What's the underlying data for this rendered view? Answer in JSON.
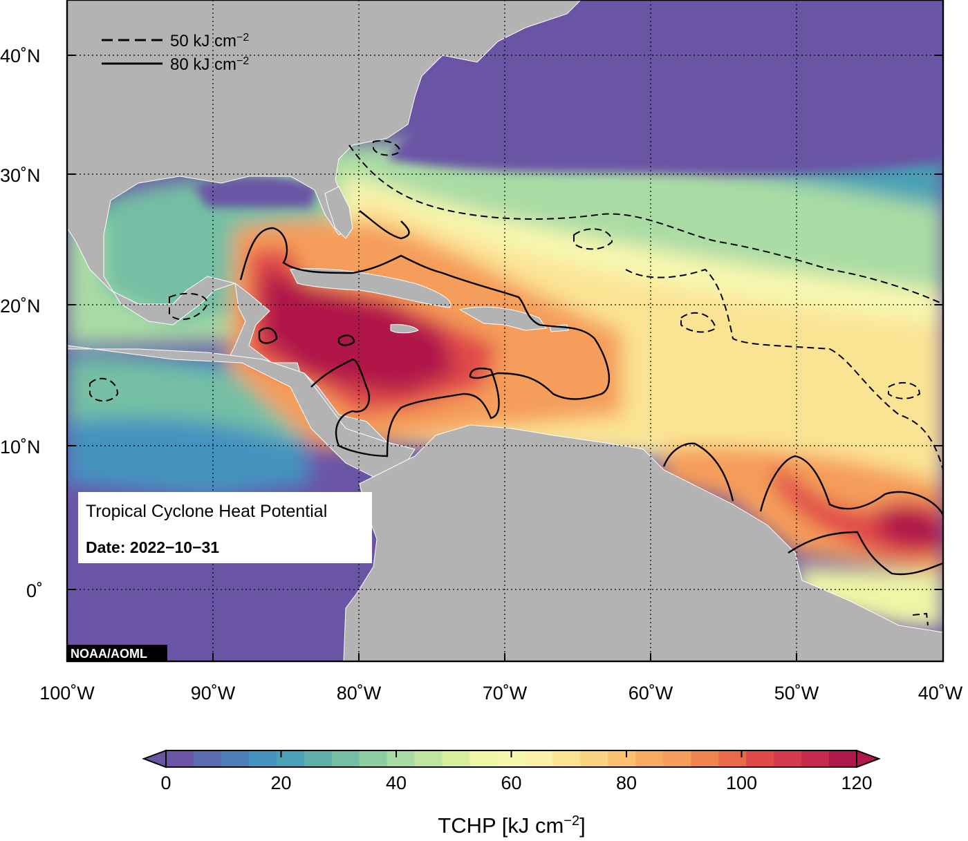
{
  "map": {
    "credit": "NOAA/AOML",
    "lat_labels": [
      "40˚N",
      "30˚N",
      "20˚N",
      "10˚N",
      "0˚"
    ],
    "lon_labels": [
      "100˚W",
      "90˚W",
      "80˚W",
      "70˚W",
      "60˚W",
      "50˚W",
      "40˚W"
    ],
    "lon_range": [
      -100,
      -40
    ],
    "lat_range": [
      -5,
      45
    ],
    "ocean_colors": {
      "cold": "#6a55a5",
      "cool": "#4aa0b5",
      "mid": "#a9dca4",
      "warm": "#f7f7b0",
      "orange": "#f59d5a",
      "hot": "#e04a4a",
      "very_hot": "#b0174a"
    },
    "land_color": "#b3b3b3"
  },
  "legend": {
    "dashed_prefix": "50 kJ cm",
    "dashed_exp": "−2",
    "solid_prefix": "80 kJ cm",
    "solid_exp": "−2"
  },
  "infobox": {
    "title": "Tropical Cyclone Heat Potential",
    "date": "Date: 2022−10−31"
  },
  "colorbar": {
    "ticks": [
      "0",
      "20",
      "40",
      "60",
      "80",
      "100",
      "120"
    ],
    "title_prefix": "TCHP [kJ cm",
    "title_exp": "−2",
    "title_suffix": "]",
    "colors": [
      "#6a55a5",
      "#5a6bb0",
      "#4d7fb8",
      "#4593bf",
      "#4aa0b5",
      "#5eb0a8",
      "#74bfa4",
      "#8ccda2",
      "#a9dca4",
      "#c1e5a0",
      "#d8ee9e",
      "#eef7a6",
      "#f7f7b0",
      "#fbf0a8",
      "#fbe394",
      "#fbd482",
      "#f9c070",
      "#f7aa62",
      "#f59d5a",
      "#f08450",
      "#e96a4a",
      "#e04a4a",
      "#d33a4c",
      "#c52a4c",
      "#b0174a"
    ]
  }
}
